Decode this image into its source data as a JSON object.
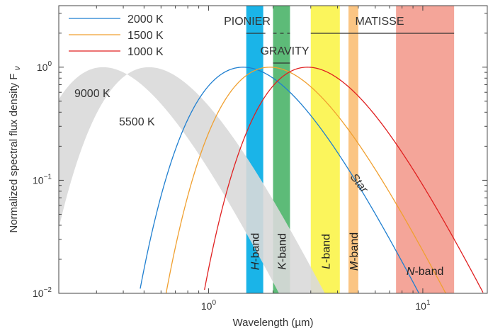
{
  "chart_data": {
    "type": "line",
    "xlabel": "Wavelength (µm)",
    "ylabel": "Normalized spectral flux density F",
    "ylabel_sub": "ν",
    "xscale": "log",
    "yscale": "log",
    "xlim": [
      0.2,
      20
    ],
    "ylim": [
      0.01,
      3.5
    ],
    "grid": false,
    "legend_position": "top-left",
    "x_ticks": [
      {
        "value": 1,
        "base": "10",
        "exp": "0"
      },
      {
        "value": 10,
        "base": "10",
        "exp": "1"
      }
    ],
    "y_ticks": [
      {
        "value": 1,
        "base": "10",
        "exp": "0"
      },
      {
        "value": 0.1,
        "base": "10",
        "exp": "−1"
      },
      {
        "value": 0.01,
        "base": "10",
        "exp": "−2"
      }
    ],
    "series": [
      {
        "name": "2000 K",
        "temperature": 2000,
        "color": "#1f7fd0"
      },
      {
        "name": "1500 K",
        "temperature": 1500,
        "color": "#f0a030"
      },
      {
        "name": "1000 K",
        "temperature": 1000,
        "color": "#e02020"
      }
    ],
    "star_band": {
      "label": "Star",
      "temperatures": [
        {
          "label": "9000 K",
          "value": 9000
        },
        {
          "label": "5500 K",
          "value": 5500
        }
      ],
      "color": "#d9d9d9"
    },
    "bands": [
      {
        "name": "H",
        "suffix": "-band",
        "range": [
          1.5,
          1.8
        ],
        "color": "#1ab4e8",
        "label_position": "bottom"
      },
      {
        "name": "K",
        "suffix": "-band",
        "range": [
          2.0,
          2.4
        ],
        "color": "#5dbb78",
        "label_position": "bottom"
      },
      {
        "name": "L",
        "suffix": "-band",
        "range": [
          3.0,
          4.1
        ],
        "color": "#fbf55c",
        "label_position": "bottom"
      },
      {
        "name": "M",
        "suffix": "-band",
        "range": [
          4.5,
          5.0
        ],
        "color": "#fbc583",
        "label_position": "bottom"
      },
      {
        "name": "N",
        "suffix": "-band",
        "range": [
          7.5,
          14.0
        ],
        "color": "#f4a599",
        "label_position": "horizontal"
      }
    ],
    "instruments": [
      {
        "name": "PIONIER",
        "segments": [
          [
            1.5,
            1.8
          ],
          [
            2.0,
            2.4
          ]
        ]
      },
      {
        "name": "GRAVITY",
        "segments": [
          [
            2.0,
            2.4
          ]
        ]
      },
      {
        "name": "MATISSE",
        "segments": [
          [
            3.0,
            14.0
          ]
        ]
      }
    ]
  }
}
